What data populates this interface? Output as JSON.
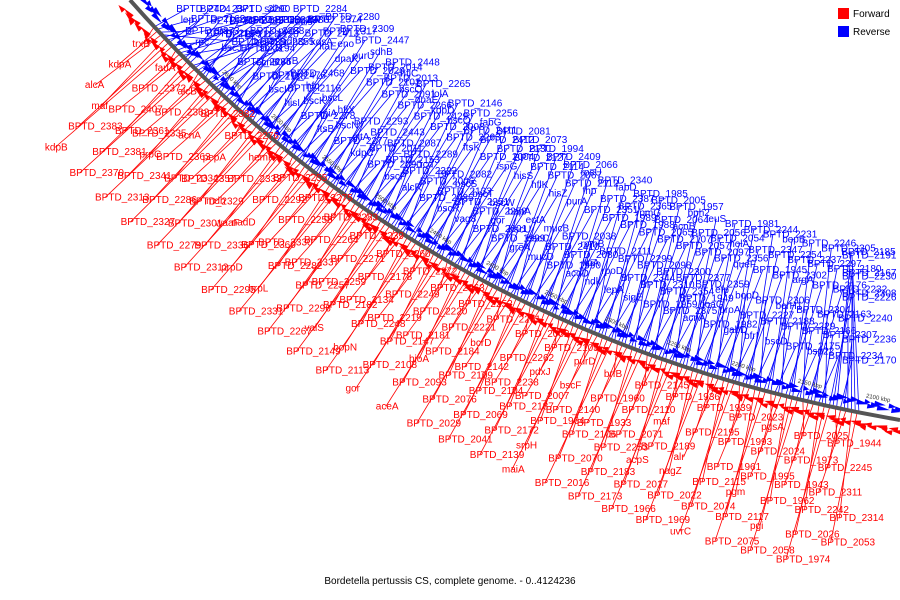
{
  "caption": "Bordetella pertussis CS, complete genome. - 0..4124236",
  "legend": {
    "position": "top-right",
    "items": [
      {
        "label": "Forward",
        "color": "#ff0000"
      },
      {
        "label": "Reverse",
        "color": "#0000ff"
      }
    ]
  },
  "backbone": {
    "kbp_labels": [
      "2650 kbp",
      "2600 kbp",
      "2550 kbp",
      "2500 kbp",
      "2450 kbp",
      "2400 kbp",
      "2350 kbp",
      "2300 kbp",
      "2250 kbp",
      "2200 kbp",
      "2150 kbp",
      "2100 kbp"
    ]
  },
  "reverse_labels": [
    "BPTD_2424",
    "lep",
    "BPTD_2373",
    "BPTD_2339",
    "BPTD_2290",
    "bcrH2",
    "BPTD_2162",
    "rnc",
    "BPTD_2371",
    "BPTD_2338",
    "BPTD_2288",
    "bcr4",
    "BPTD_2129",
    "BPTD_2496",
    "era",
    "BPTD_2355",
    "sdhC",
    "BPTD_2287",
    "bscJ",
    "BPTD_2128",
    "BPTD_2485",
    "BPTD_2386",
    "pyrG",
    "sdhD",
    "BPTD_2285",
    "BPTD_2194",
    "BPTD_2120",
    "sdhA",
    "BPTD_2284",
    "engA",
    "BPTD_2118",
    "ecnB",
    "soxB",
    "BPTD_2413",
    "BPTD_2374",
    "kdsA",
    "bscI",
    "BPTD_2476",
    "murB",
    "ltaE",
    "BPTD_2317",
    "BPTD_2280",
    "hisI",
    "BPTD_2116",
    "BPTD_2468",
    "dnaK",
    "eno",
    "BPTD_2309",
    "BPTD_2278",
    "bscK",
    "hfq",
    "BPTD_2020",
    "purU",
    "BPTD_2447",
    "ftsB",
    "rpiA",
    "bscL",
    "BPTD_2102",
    "BPTD_2014",
    "sdhB",
    "BPTD_2277",
    "bscN",
    "hflX",
    "BPTD_2091",
    "BPTD_2013",
    "BPTD_2448",
    "kdpC",
    "gltA",
    "BPTD_2293",
    "BPTD_2266",
    "bscO",
    "hflC",
    "BPTD_2090",
    "BPTD_2011",
    "BPTD_2443",
    "BPTD_2429",
    "dnaE",
    "BPTD_2265",
    "bscP",
    "BPTD_2153",
    "BPTD_2087",
    "BPTD_2008",
    "kdpD",
    "lolA",
    "alcR",
    "BPTD_2322",
    "BPTD_2289",
    "BPTD_2263",
    "bscQ",
    "BPTD_2146",
    "BPTD_2085",
    "BPTD_2006",
    "icd",
    "ftsK",
    "BPTD_2411",
    "BPTD_2256",
    "bscR",
    "BPTD_2132",
    "BPTD_2082",
    "BPTD_2004",
    "BPTD_2412",
    "fabG",
    "vag8",
    "BPTD_2251",
    "bscS",
    "ispG",
    "BPTD_2130",
    "BPTD_2081",
    "BPTD_2001",
    "BPTD_2250",
    "bscT",
    "hisS",
    "BPTD_2127",
    "BPTD_2073",
    "BPTD_1999",
    "qor",
    "bscW",
    "hflK",
    "BPTD_2114",
    "BPTD_1994",
    "greA",
    "bscU",
    "bapA",
    "hisZ",
    "BPTD_2067",
    "BPTD_2409",
    "mucD",
    "bscC",
    "ectA",
    "purA",
    "BPTD_2112",
    "BPTD_2066",
    "BPTD_1990",
    "BPTD_2410",
    "mucB",
    "BPTD_2351",
    "fhp",
    "rpsU",
    "acoD",
    "BPTD_2080",
    "BPTD_2038",
    "BPTD_1989",
    "BPTD_2387",
    "BPTD_2340",
    "ndk",
    "lipA",
    "rpmB",
    "BPTD_1988",
    "BPTD_2365",
    "fabD",
    "lepA",
    "rpoD",
    "BPTD_2111",
    "BPTD_2065",
    "rpmG",
    "BPTD_1985",
    "sigE",
    "BPTD_2344",
    "BPTD_2299",
    "BPTD_2107",
    "BPTD_2064",
    "BPTD_2005",
    "BPTD_1959",
    "BPTD_2310",
    "BPTD_2098",
    "BPTD_2057",
    "acnB",
    "BPTD_1957",
    "BPTD_2375",
    "BPTD_2354",
    "BPTD_2300",
    "BPTD_2097",
    "BPTD_2056",
    "bph2",
    "acnA",
    "BPTD_1949",
    "BPTD_2377",
    "BPTD_2356",
    "BPTD_2054",
    "leuS",
    "BPTD_1982",
    "goaG",
    "BPTD_2359",
    "queF",
    "holA",
    "BPTD_1981",
    "gabD",
    "proA",
    "efp",
    "BPTD_1945",
    "BPTD_2347",
    "BPTD_2244",
    "bfrI",
    "BPTD_2227",
    "bopD",
    "BPTD_2302",
    "BPTD_2254",
    "BPTD_2231",
    "bscD",
    "BPTD_2188",
    "BPTD_2306",
    "argA",
    "BPTD_2237",
    "bopB",
    "BPTD_2175",
    "BPTD_2229",
    "bcrH1",
    "BPTD_2176",
    "BPTD_2297",
    "BPTD_2246",
    "bsp22",
    "BPTD_2166",
    "BPTD_2304",
    "BPTD_2232",
    "BPTD_2180",
    "BPTD_2305",
    "BPTD_2234",
    "BPTD_2307",
    "BPTD_2163",
    "BPTD_2308",
    "BPTD_2167",
    "BPTD_2185",
    "BPTD_2170",
    "BPTD_2236",
    "BPTD_2240",
    "BPTD_2226",
    "BPTD_2230",
    "BPTD_2191"
  ],
  "forward_labels": [
    "trxB",
    "kdpA",
    "alcA",
    "maf",
    "BPTD_2383",
    "kdpB",
    "fauA",
    "BPTD_2372",
    "BPTD_2407",
    "BPTD_2361",
    "BPTD_2381",
    "BPTD_2370",
    "alcB",
    "BPTD_2362",
    "BPTD_2335",
    "prpC",
    "BPTD_2341",
    "BPTD_2313",
    "BPTD_2382",
    "acnA",
    "BPTD_2363",
    "BPTD_2334",
    "BPTD_2286",
    "BPTD_2327",
    "BPTD_2276",
    "pepA",
    "BPTD_2357",
    "BPTD_2329",
    "BPTD_2301",
    "BPTD_2279",
    "hemF",
    "BPTD_2333",
    "mdh",
    "waaF",
    "BPTD_2336",
    "BPTD_2312",
    "BPTD_2255",
    "BPTD_2292",
    "nadD",
    "BPTD_2360",
    "prpD",
    "BPTD_2295",
    "BPTD_2275",
    "BPTD_2258",
    "BPTD_2330",
    "BPTD_2282",
    "brpL",
    "BPTD_2331",
    "BPTD_2283",
    "BPTD_2264",
    "BPTD_2337",
    "BPTD_2257",
    "BPTD_2296",
    "BPTD_2267",
    "BPTD_2239",
    "BPTD_2271",
    "BPTD_2259",
    "BPTD_2182",
    "valS",
    "BPTD_2149",
    "BPTD_2260",
    "BPTD_2178",
    "BPTD_2134",
    "BPTD_2248",
    "bopN",
    "BPTD_2113",
    "BPTD_2272",
    "BPTD_2249",
    "BPTD_2219",
    "BPTD_2147",
    "BPTD_2108",
    "gor",
    "BPTD_2063",
    "BPTD_2220",
    "BPTD_2181",
    "bioA",
    "BPTD_2093",
    "aceA",
    "BPTD_2252",
    "BPTD_2221",
    "BPTD_2184",
    "BPTD_2109",
    "BPTD_2076",
    "BPTD_2029",
    "BPTD_2261",
    "bcrD",
    "BPTD_2142",
    "BPTD_2104",
    "BPTD_2069",
    "BPTD_2041",
    "BPTD_2002",
    "BPTD_2262",
    "BPTD_2238",
    "BPTD_2187",
    "BPTD_2172",
    "BPTD_2139",
    "BPTD_2105",
    "pdxJ",
    "BPTD_2007",
    "BPTD_1964",
    "srpH",
    "maiA",
    "purD",
    "bscF",
    "BPTD_2140",
    "BPTD_2106",
    "BPTD_2070",
    "BPTD_2016",
    "brfB",
    "BPTD_1960",
    "BPTD_1933",
    "BPTD_2253",
    "BPTD_2183",
    "BPTD_2173",
    "BPTD_2145",
    "BPTD_2110",
    "BPTD_2071",
    "acpS",
    "BPTD_2017",
    "BPTD_1966",
    "BPTD_1936",
    "maf",
    "BPTD_2189",
    "nagZ",
    "BPTD_2022",
    "BPTD_1969",
    "BPTD_1939",
    "BPTD_2195",
    "alr",
    "BPTD_2115",
    "BPTD_2074",
    "uvrC",
    "BPTD_2023",
    "BPTD_1993",
    "BPTD_1961",
    "pgm",
    "BPTD_2117",
    "BPTD_2075",
    "pgsA",
    "BPTD_2024",
    "BPTD_1995",
    "BPTD_1962",
    "pgi",
    "BPTD_2058",
    "BPTD_2025",
    "BPTD_1973",
    "BPTD_1943",
    "BPTD_2242",
    "BPTD_2026",
    "BPTD_1974",
    "BPTD_1944",
    "BPTD_2245",
    "BPTD_2311",
    "BPTD_2314",
    "BPTD_2053"
  ]
}
